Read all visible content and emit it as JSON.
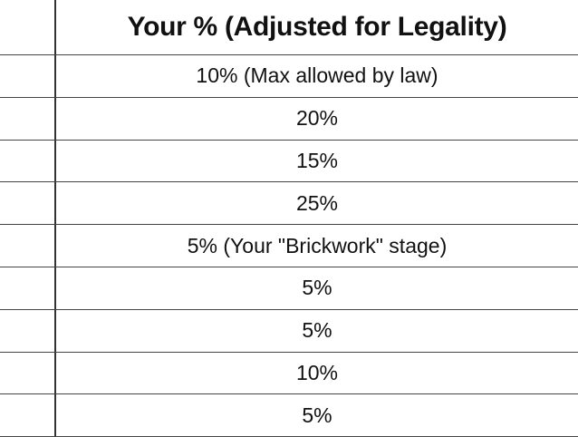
{
  "table": {
    "header": "Your % (Adjusted for Legality)",
    "rows": [
      "10% (Max allowed by law)",
      "20%",
      "15%",
      "25%",
      "5% (Your \"Brickwork\" stage)",
      "5%",
      "5%",
      "10%",
      "5%"
    ]
  }
}
